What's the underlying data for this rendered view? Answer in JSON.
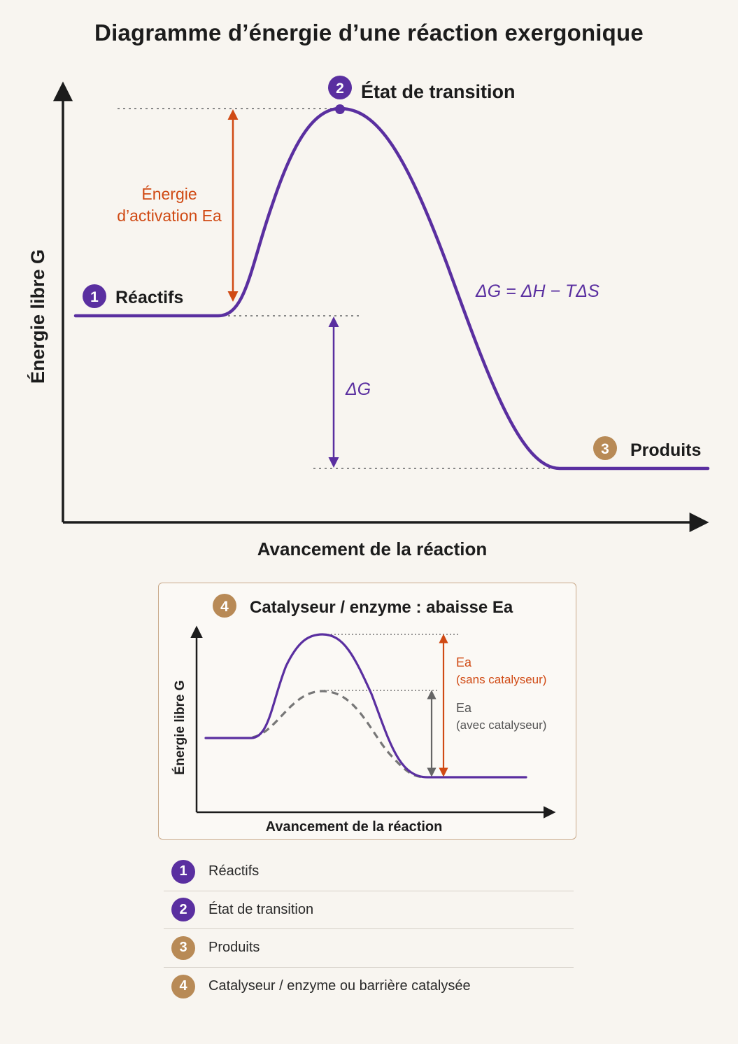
{
  "title": "Diagramme d’énergie d’une réaction exergonique",
  "colors": {
    "purple": "#5a2fa0",
    "orange": "#d04a14",
    "gold": "#b88a56",
    "gray": "#666666",
    "axis": "#1c1c1c"
  },
  "main": {
    "y_axis_label": "Énergie libre G",
    "x_axis_label": "Avancement de la réaction",
    "reactants": {
      "badge": "1",
      "label": "Réactifs"
    },
    "transition": {
      "badge": "2",
      "label": "État de transition"
    },
    "products": {
      "badge": "3",
      "label": "Produits"
    },
    "activation_label_line1": "Énergie",
    "activation_label_line2": "d’activation Ea",
    "delta_g_label": "ΔG",
    "equation": "ΔG = ΔH − TΔS"
  },
  "inset": {
    "badge": "4",
    "title": "Catalyseur / enzyme : abaisse Ea",
    "y_axis_label": "Énergie libre G",
    "x_axis_label": "Avancement de la réaction",
    "ea_uncat_line1": "Ea",
    "ea_uncat_line2": "(sans catalyseur)",
    "ea_cat_line1": "Ea",
    "ea_cat_line2": "(avec catalyseur)"
  },
  "legend": [
    {
      "badge": "1",
      "label": "Réactifs",
      "color": "#5a2fa0"
    },
    {
      "badge": "2",
      "label": "État de transition",
      "color": "#5a2fa0"
    },
    {
      "badge": "3",
      "label": "Produits",
      "color": "#b88a56"
    },
    {
      "badge": "4",
      "label": "Catalyseur / enzyme ou barrière catalysée",
      "color": "#b88a56"
    }
  ]
}
